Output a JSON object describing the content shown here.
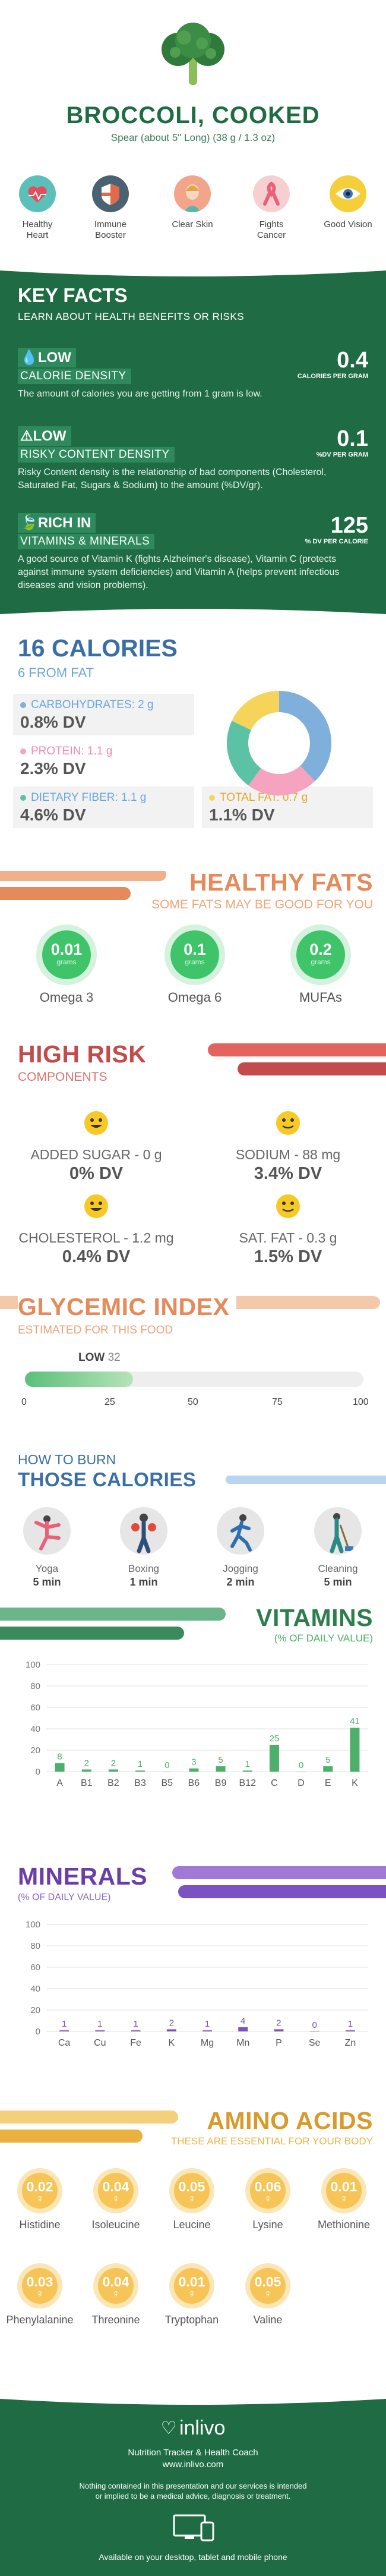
{
  "colors": {
    "green_dark": "#1f6b43",
    "blue": "#3a6fa6",
    "orange": "#e58a5a",
    "red": "#c44b4b",
    "teal": "#3a8a5c",
    "purple": "#6a3ea6",
    "amber": "#d99a2a"
  },
  "header": {
    "title": "BROCCOLI, COOKED",
    "serving": "Spear (about 5\" Long) (38 g / 1.3 oz)",
    "benefits": [
      {
        "icon": "heart-icon",
        "label": "Healthy Heart"
      },
      {
        "icon": "shield-icon",
        "label": "Immune Booster"
      },
      {
        "icon": "face-icon",
        "label": "Clear Skin"
      },
      {
        "icon": "ribbon-icon",
        "label": "Fights Cancer"
      },
      {
        "icon": "eye-icon",
        "label": "Good Vision"
      }
    ]
  },
  "key_facts": {
    "title": "KEY FACTS",
    "subtitle": "LEARN ABOUT HEALTH BENEFITS OR RISKS",
    "items": [
      {
        "level": "LOW",
        "name": "CALORIE DENSITY",
        "value": "0.4",
        "unit": "CALORIES PER GRAM",
        "desc": "The amount of calories you are getting from 1 gram is low."
      },
      {
        "level": "LOW",
        "name": "RISKY CONTENT DENSITY",
        "value": "0.1",
        "unit": "%DV PER GRAM",
        "desc": "Risky Content density is the relationship of bad components (Cholesterol, Saturated Fat, Sugars & Sodium) to the amount (%DV/gr)."
      },
      {
        "level": "RICH IN",
        "name": "VITAMINS & MINERALS",
        "value": "125",
        "unit": "% DV PER CALORIE",
        "desc": "A good source of Vitamin K (fights Alzheimer's disease), Vitamin C (protects against immune system deficiencies) and Vitamin A (helps prevent infectious diseases and vision problems)."
      }
    ]
  },
  "calories": {
    "title": "16 CALORIES",
    "subtitle": "6 FROM FAT",
    "nutrients": [
      {
        "label": "CARBOHYDRATES: 2 g",
        "dv": "0.8% DV",
        "color": "#7fb0dc"
      },
      {
        "label": "PROTEIN: 1.1 g",
        "dv": "2.3% DV",
        "color": "#f5a3bf"
      },
      {
        "label": "DIETARY FIBER: 1.1 g",
        "dv": "4.6% DV",
        "color": "#5cc2a6"
      },
      {
        "label": "TOTAL FAT: 0.7 g",
        "dv": "1.1% DV",
        "color": "#f6d45a"
      }
    ],
    "donut": [
      {
        "name": "carbohydrates",
        "value": 38,
        "color": "#7fb0dc"
      },
      {
        "name": "protein",
        "value": 22,
        "color": "#f5a3bf"
      },
      {
        "name": "fiber",
        "value": 22,
        "color": "#5cc2a6"
      },
      {
        "name": "fat",
        "value": 18,
        "color": "#f6d45a"
      }
    ]
  },
  "fats": {
    "title": "HEALTHY FATS",
    "subtitle": "SOME FATS MAY BE GOOD FOR YOU",
    "items": [
      {
        "value": "0.01",
        "unit": "grams",
        "label": "Omega 3"
      },
      {
        "value": "0.1",
        "unit": "grams",
        "label": "Omega 6"
      },
      {
        "value": "0.2",
        "unit": "grams",
        "label": "MUFAs"
      }
    ]
  },
  "risk": {
    "title": "HIGH RISK",
    "subtitle": "COMPONENTS",
    "items": [
      {
        "label": "ADDED SUGAR - 0 g",
        "dv": "0% DV"
      },
      {
        "label": "SODIUM - 88 mg",
        "dv": "3.4% DV"
      },
      {
        "label": "CHOLESTEROL - 1.2 mg",
        "dv": "0.4% DV"
      },
      {
        "label": "SAT. FAT - 0.3 g",
        "dv": "1.5% DV"
      }
    ]
  },
  "glycemic": {
    "title": "GLYCEMIC INDEX",
    "subtitle": "ESTIMATED FOR THIS FOOD",
    "level": "LOW",
    "value": 32,
    "ticks": [
      "0",
      "25",
      "50",
      "75",
      "100"
    ]
  },
  "burn": {
    "title_small": "HOW TO BURN",
    "title_big": "THOSE CALORIES",
    "activities": [
      {
        "icon": "yoga-icon",
        "name": "Yoga",
        "time": "5 min"
      },
      {
        "icon": "boxing-icon",
        "name": "Boxing",
        "time": "1 min"
      },
      {
        "icon": "jogging-icon",
        "name": "Jogging",
        "time": "2 min"
      },
      {
        "icon": "cleaning-icon",
        "name": "Cleaning",
        "time": "5 min"
      }
    ]
  },
  "chart_data": [
    {
      "type": "bar",
      "title": "VITAMINS",
      "subtitle": "(% OF DAILY VALUE)",
      "categories": [
        "A",
        "B1",
        "B2",
        "B3",
        "B5",
        "B6",
        "B9",
        "B12",
        "C",
        "D",
        "E",
        "K"
      ],
      "values": [
        8,
        2,
        2,
        1,
        0,
        3,
        5,
        1,
        25,
        0,
        5,
        41
      ],
      "ylim": [
        0,
        100
      ],
      "yticks": [
        "100",
        "80",
        "60",
        "40",
        "20",
        "0"
      ],
      "color": "#4caf6a"
    },
    {
      "type": "bar",
      "title": "MINERALS",
      "subtitle": "(% OF DAILY VALUE)",
      "categories": [
        "Ca",
        "Cu",
        "Fe",
        "K",
        "Mg",
        "Mn",
        "P",
        "Se",
        "Zn"
      ],
      "values": [
        1,
        1,
        1,
        2,
        1,
        4,
        2,
        0,
        1
      ],
      "ylim": [
        0,
        100
      ],
      "yticks": [
        "100",
        "80",
        "60",
        "40",
        "20",
        "0"
      ],
      "color": "#7b52c2"
    }
  ],
  "amino": {
    "title": "AMINO ACIDS",
    "subtitle": "THESE ARE ESSENTIAL FOR YOUR BODY",
    "unit": "g",
    "items": [
      {
        "value": "0.02",
        "label": "Histidine"
      },
      {
        "value": "0.04",
        "label": "Isoleucine"
      },
      {
        "value": "0.05",
        "label": "Leucine"
      },
      {
        "value": "0.06",
        "label": "Lysine"
      },
      {
        "value": "0.01",
        "label": "Methionine"
      },
      {
        "value": "0.03",
        "label": "Phenylalanine"
      },
      {
        "value": "0.04",
        "label": "Threonine"
      },
      {
        "value": "0.01",
        "label": "Tryptophan"
      },
      {
        "value": "0.05",
        "label": "Valine"
      }
    ]
  },
  "footer": {
    "brand": "inlivo",
    "tagline": "Nutrition Tracker & Health Coach",
    "url": "www.inlivo.com",
    "disclaimer": "Nothing contained in this presentation and our services is intended or implied to be a medical advice, diagnosis or treatment.",
    "available": "Available on your desktop, tablet and mobile phone"
  }
}
